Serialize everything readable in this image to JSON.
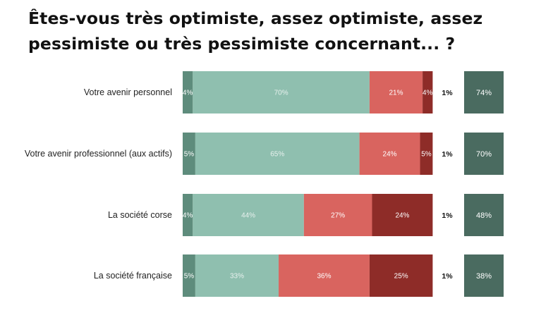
{
  "title": {
    "line1": "Êtes-vous très optimiste, assez optimiste, assez",
    "line2": "pessimiste ou très pessimiste concernant... ?"
  },
  "chart_data": {
    "type": "bar",
    "orientation": "horizontal",
    "stacked": true,
    "categories": [
      "Votre avenir personnel",
      "Votre avenir professionnel (aux actifs)",
      "La société corse",
      "La société française"
    ],
    "series": [
      {
        "values": [
          4,
          5,
          4,
          5
        ],
        "color": "#5e8c7c"
      },
      {
        "values": [
          70,
          65,
          44,
          33
        ],
        "color": "#8fbfaf"
      },
      {
        "values": [
          21,
          24,
          27,
          36
        ],
        "color": "#d9645f"
      },
      {
        "values": [
          4,
          5,
          24,
          25
        ],
        "color": "#8e2c28"
      }
    ],
    "unlabeled_values": [
      1,
      1,
      1,
      1
    ],
    "totals": {
      "values": [
        74,
        70,
        48,
        38
      ],
      "color": "#4a6b60"
    },
    "value_suffix": "%",
    "xlim": [
      0,
      100
    ],
    "grid": false,
    "legend": "none"
  }
}
